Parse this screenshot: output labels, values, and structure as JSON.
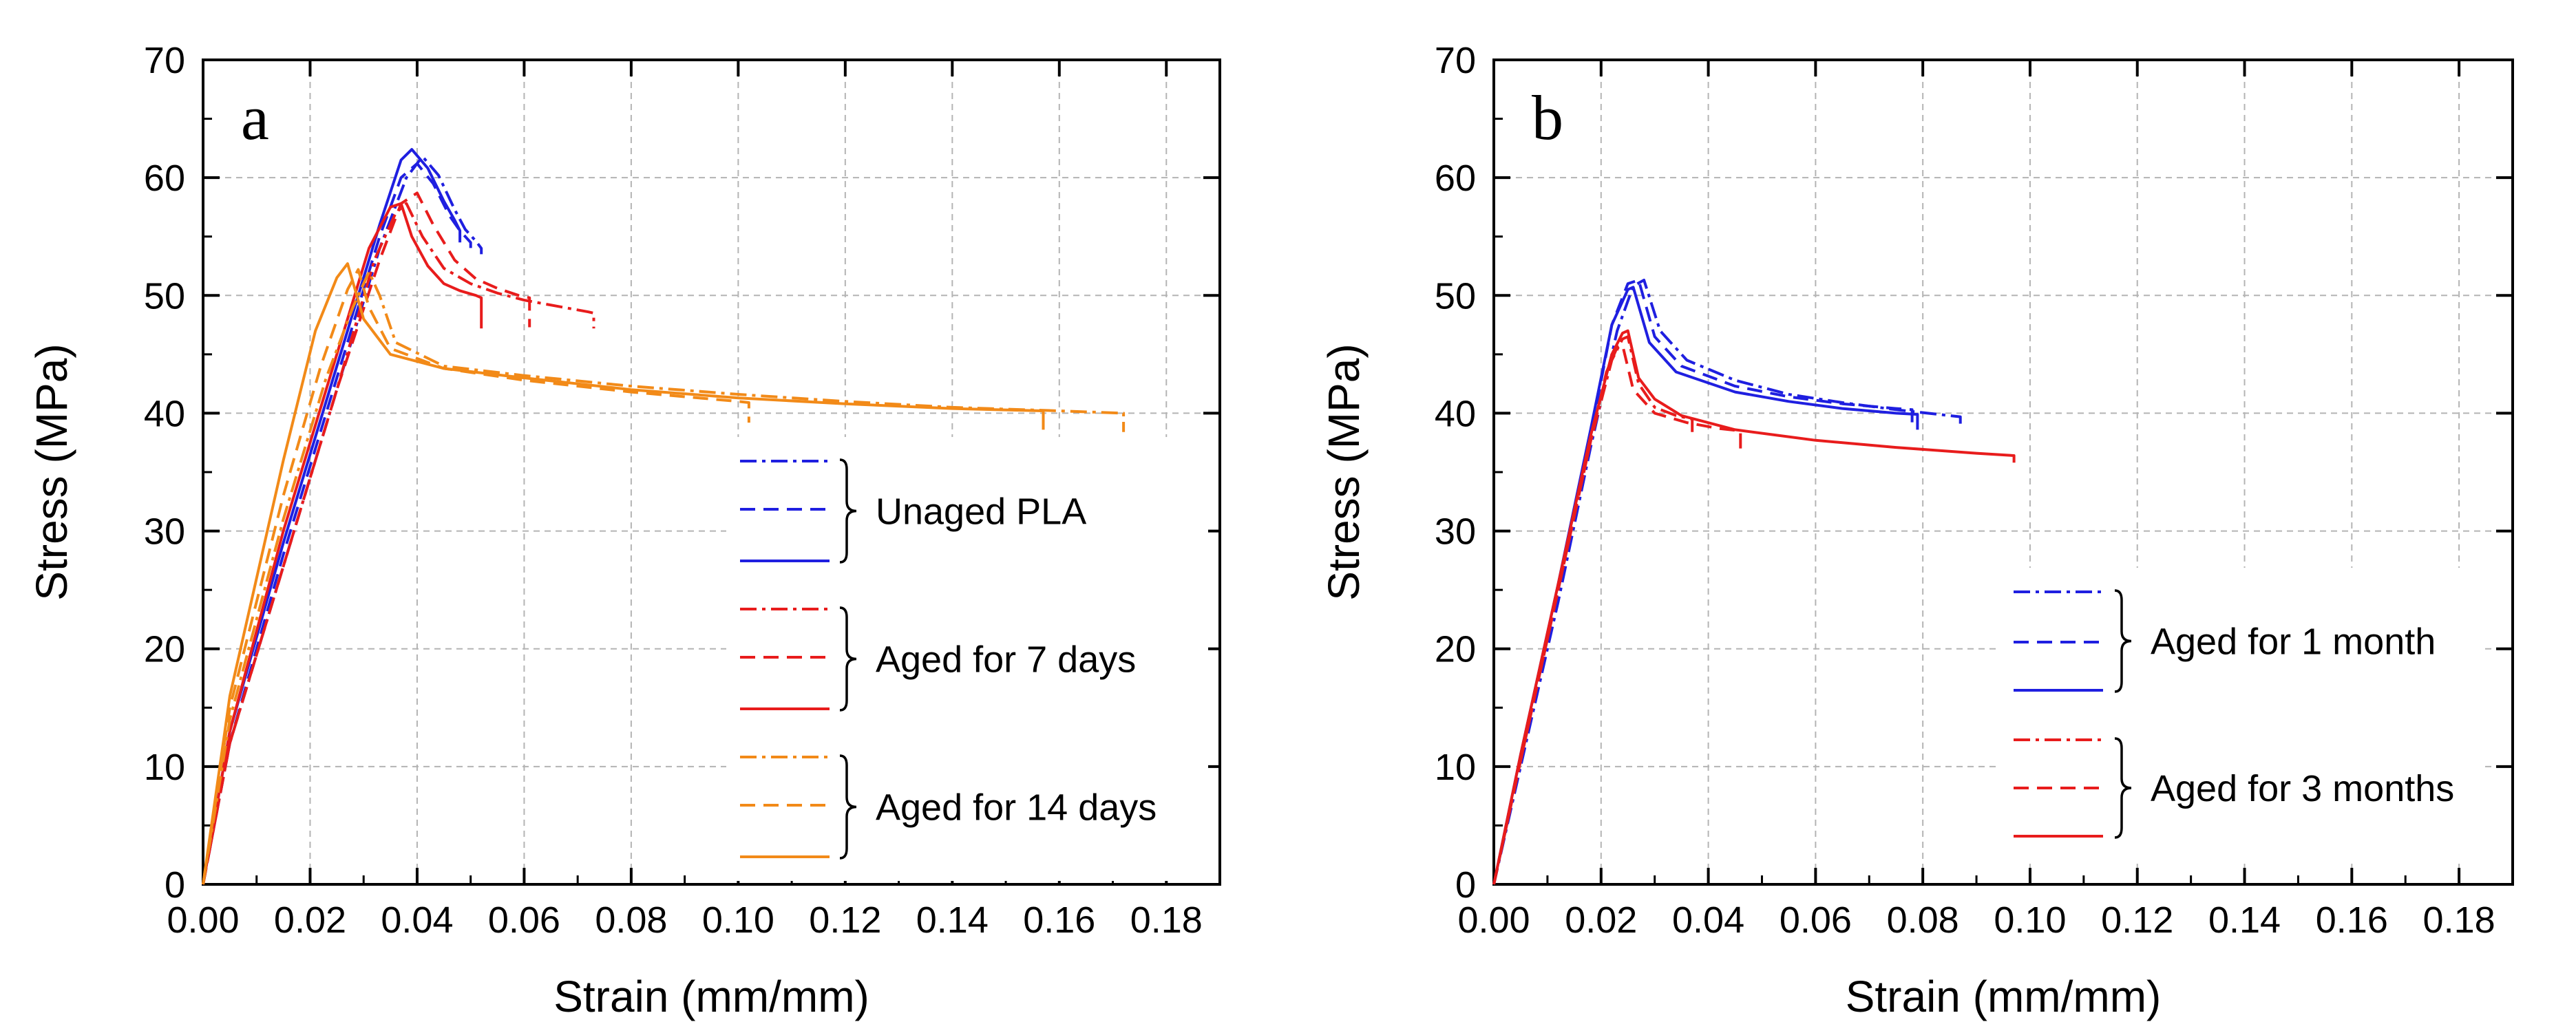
{
  "chart_data": [
    {
      "type": "line",
      "panel_label": "a",
      "xlabel": "Strain (mm/mm)",
      "ylabel": "Stress (MPa)",
      "xlim": [
        0,
        0.19
      ],
      "ylim": [
        0,
        70
      ],
      "xticks": [
        0,
        0.02,
        0.04,
        0.06,
        0.08,
        0.1,
        0.12,
        0.14,
        0.16,
        0.18
      ],
      "xtick_labels": [
        "0.00",
        "0.02",
        "0.04",
        "0.06",
        "0.08",
        "0.10",
        "0.12",
        "0.14",
        "0.16",
        "0.18"
      ],
      "yticks": [
        0,
        10,
        20,
        30,
        40,
        50,
        60,
        70
      ],
      "ytick_labels": [
        "0",
        "10",
        "20",
        "30",
        "40",
        "50",
        "60",
        "70"
      ],
      "grid": true,
      "legend": {
        "position": "center-right",
        "groups": [
          {
            "label": "Unaged PLA",
            "color": "#1f1fe0"
          },
          {
            "label": "Aged for 7 days",
            "color": "#e81c1c"
          },
          {
            "label": "Aged for 14 days",
            "color": "#f28a18"
          }
        ],
        "line_styles": [
          "dash-dot",
          "dashed",
          "solid"
        ]
      },
      "series": [
        {
          "name": "Unaged PLA 1",
          "group": 0,
          "style": "dash-dot",
          "color": "#1f1fe0",
          "x": [
            0,
            0.005,
            0.015,
            0.025,
            0.033,
            0.038,
            0.041,
            0.044,
            0.047,
            0.049,
            0.051,
            0.052,
            0.052
          ],
          "y": [
            0,
            12,
            27,
            42,
            54,
            60,
            61.8,
            60.2,
            57.3,
            55.6,
            54.6,
            54,
            53.5
          ]
        },
        {
          "name": "Unaged PLA 2",
          "group": 0,
          "style": "dashed",
          "color": "#1f1fe0",
          "x": [
            0,
            0.005,
            0.015,
            0.025,
            0.033,
            0.037,
            0.04,
            0.043,
            0.046,
            0.048,
            0.05,
            0.05
          ],
          "y": [
            0,
            12,
            28,
            43,
            55,
            60,
            61.2,
            59.5,
            56.8,
            55.5,
            54.5,
            53.8
          ]
        },
        {
          "name": "Unaged PLA 3",
          "group": 0,
          "style": "solid",
          "color": "#1f1fe0",
          "x": [
            0,
            0.005,
            0.015,
            0.025,
            0.033,
            0.037,
            0.039,
            0.042,
            0.045,
            0.047,
            0.048,
            0.048
          ],
          "y": [
            0,
            13,
            29,
            44,
            56,
            61.5,
            62.4,
            60.8,
            58,
            56.4,
            55.5,
            54.5
          ]
        },
        {
          "name": "Aged 7 days 1",
          "group": 1,
          "style": "dash-dot",
          "color": "#e81c1c",
          "x": [
            0,
            0.005,
            0.015,
            0.025,
            0.032,
            0.036,
            0.038,
            0.041,
            0.045,
            0.05,
            0.055,
            0.06,
            0.066,
            0.072,
            0.073,
            0.073
          ],
          "y": [
            0,
            12,
            27,
            42,
            53,
            57,
            57.8,
            55,
            52.3,
            51,
            50.2,
            49.6,
            49.1,
            48.6,
            48.5,
            47.2
          ]
        },
        {
          "name": "Aged 7 days 2",
          "group": 1,
          "style": "dashed",
          "color": "#e81c1c",
          "x": [
            0,
            0.005,
            0.015,
            0.025,
            0.033,
            0.037,
            0.04,
            0.043,
            0.047,
            0.051,
            0.055,
            0.059,
            0.061,
            0.061
          ],
          "y": [
            0,
            12,
            27,
            42,
            53,
            57.8,
            58.7,
            56,
            53,
            51.4,
            50.6,
            50,
            49.8,
            47.3
          ]
        },
        {
          "name": "Aged 7 days 3",
          "group": 1,
          "style": "solid",
          "color": "#e81c1c",
          "x": [
            0,
            0.005,
            0.015,
            0.025,
            0.031,
            0.035,
            0.037,
            0.039,
            0.042,
            0.045,
            0.048,
            0.051,
            0.052,
            0.052
          ],
          "y": [
            0,
            13,
            30,
            45,
            54,
            57.5,
            57.8,
            55,
            52.5,
            51,
            50.4,
            50,
            49.8,
            47.2
          ]
        },
        {
          "name": "Aged 14 days 1",
          "group": 2,
          "style": "dash-dot",
          "color": "#f28a18",
          "x": [
            0,
            0.005,
            0.015,
            0.023,
            0.028,
            0.031,
            0.033,
            0.036,
            0.045,
            0.06,
            0.08,
            0.1,
            0.12,
            0.14,
            0.16,
            0.172,
            0.172
          ],
          "y": [
            0,
            14,
            31,
            43,
            49,
            52,
            50,
            46,
            44,
            43.2,
            42.3,
            41.6,
            41,
            40.5,
            40.2,
            40,
            38.4
          ]
        },
        {
          "name": "Aged 14 days 2",
          "group": 2,
          "style": "dashed",
          "color": "#f28a18",
          "x": [
            0,
            0.005,
            0.015,
            0.022,
            0.027,
            0.029,
            0.031,
            0.035,
            0.045,
            0.06,
            0.08,
            0.1,
            0.102,
            0.102
          ],
          "y": [
            0,
            15,
            33,
            44,
            50.5,
            52.2,
            49,
            45.5,
            43.8,
            42.8,
            41.8,
            41,
            40.9,
            39.2
          ]
        },
        {
          "name": "Aged 14 days 3",
          "group": 2,
          "style": "solid",
          "color": "#f28a18",
          "x": [
            0,
            0.005,
            0.015,
            0.021,
            0.025,
            0.027,
            0.03,
            0.035,
            0.045,
            0.06,
            0.08,
            0.1,
            0.12,
            0.14,
            0.157,
            0.157
          ],
          "y": [
            0,
            16,
            36,
            47,
            51.5,
            52.7,
            48,
            45,
            43.8,
            43,
            42,
            41.3,
            40.8,
            40.4,
            40.2,
            38.6
          ]
        }
      ]
    },
    {
      "type": "line",
      "panel_label": "b",
      "xlabel": "Strain (mm/mm)",
      "ylabel": "Stress (MPa)",
      "xlim": [
        0,
        0.19
      ],
      "ylim": [
        0,
        70
      ],
      "xticks": [
        0,
        0.02,
        0.04,
        0.06,
        0.08,
        0.1,
        0.12,
        0.14,
        0.16,
        0.18
      ],
      "xtick_labels": [
        "0.00",
        "0.02",
        "0.04",
        "0.06",
        "0.08",
        "0.10",
        "0.12",
        "0.14",
        "0.16",
        "0.18"
      ],
      "yticks": [
        0,
        10,
        20,
        30,
        40,
        50,
        60,
        70
      ],
      "ytick_labels": [
        "0",
        "10",
        "20",
        "30",
        "40",
        "50",
        "60",
        "70"
      ],
      "grid": true,
      "legend": {
        "position": "bottom-right",
        "groups": [
          {
            "label": "Aged for 1 month",
            "color": "#1f1fe0"
          },
          {
            "label": "Aged for 3 months",
            "color": "#e81c1c"
          }
        ],
        "line_styles": [
          "dash-dot",
          "dashed",
          "solid"
        ]
      },
      "series": [
        {
          "name": "Aged 1 month 1",
          "group": 0,
          "style": "dash-dot",
          "color": "#1f1fe0",
          "x": [
            0,
            0.005,
            0.012,
            0.018,
            0.023,
            0.026,
            0.028,
            0.031,
            0.036,
            0.045,
            0.055,
            0.065,
            0.075,
            0.085,
            0.087,
            0.087
          ],
          "y": [
            0,
            10,
            24,
            37,
            47,
            50.8,
            51.3,
            47,
            44.5,
            42.8,
            41.6,
            40.9,
            40.3,
            39.8,
            39.7,
            38.7
          ]
        },
        {
          "name": "Aged 1 month 2",
          "group": 0,
          "style": "dashed",
          "color": "#1f1fe0",
          "x": [
            0,
            0.005,
            0.012,
            0.018,
            0.022,
            0.025,
            0.027,
            0.03,
            0.035,
            0.045,
            0.055,
            0.065,
            0.075,
            0.078,
            0.078
          ],
          "y": [
            0,
            10.5,
            25,
            38,
            47.5,
            51,
            51.3,
            46.5,
            44,
            42.3,
            41.4,
            40.8,
            40.4,
            40.3,
            39
          ]
        },
        {
          "name": "Aged 1 month 3",
          "group": 0,
          "style": "solid",
          "color": "#1f1fe0",
          "x": [
            0,
            0.005,
            0.012,
            0.018,
            0.022,
            0.025,
            0.026,
            0.029,
            0.034,
            0.045,
            0.055,
            0.065,
            0.075,
            0.079,
            0.079
          ],
          "y": [
            0,
            11,
            25.5,
            38.5,
            47.5,
            50.5,
            50.7,
            46,
            43.5,
            41.8,
            41,
            40.4,
            40,
            39.9,
            38.6
          ]
        },
        {
          "name": "Aged 3 months 1",
          "group": 1,
          "style": "dash-dot",
          "color": "#e81c1c",
          "x": [
            0,
            0.005,
            0.012,
            0.018,
            0.022,
            0.024,
            0.025,
            0.027,
            0.03,
            0.034,
            0.037,
            0.037
          ],
          "y": [
            0,
            10.5,
            25,
            37.5,
            44.5,
            46.3,
            46.5,
            42.5,
            40.5,
            39.8,
            39.5,
            38.4
          ]
        },
        {
          "name": "Aged 3 months 2",
          "group": 1,
          "style": "dashed",
          "color": "#e81c1c",
          "x": [
            0,
            0.005,
            0.012,
            0.018,
            0.021,
            0.023,
            0.024,
            0.026,
            0.03,
            0.036,
            0.042,
            0.046,
            0.046
          ],
          "y": [
            0,
            10.5,
            25,
            37.5,
            43.5,
            45.6,
            45.8,
            42,
            40,
            39.2,
            38.7,
            38.5,
            36.7
          ]
        },
        {
          "name": "Aged 3 months 3",
          "group": 1,
          "style": "solid",
          "color": "#e81c1c",
          "x": [
            0,
            0.005,
            0.012,
            0.018,
            0.022,
            0.024,
            0.025,
            0.027,
            0.03,
            0.035,
            0.045,
            0.06,
            0.075,
            0.09,
            0.097,
            0.097
          ],
          "y": [
            0,
            11,
            25.5,
            38,
            45,
            46.8,
            47,
            43,
            41.2,
            39.8,
            38.6,
            37.7,
            37.1,
            36.6,
            36.4,
            35.8
          ]
        }
      ]
    }
  ]
}
